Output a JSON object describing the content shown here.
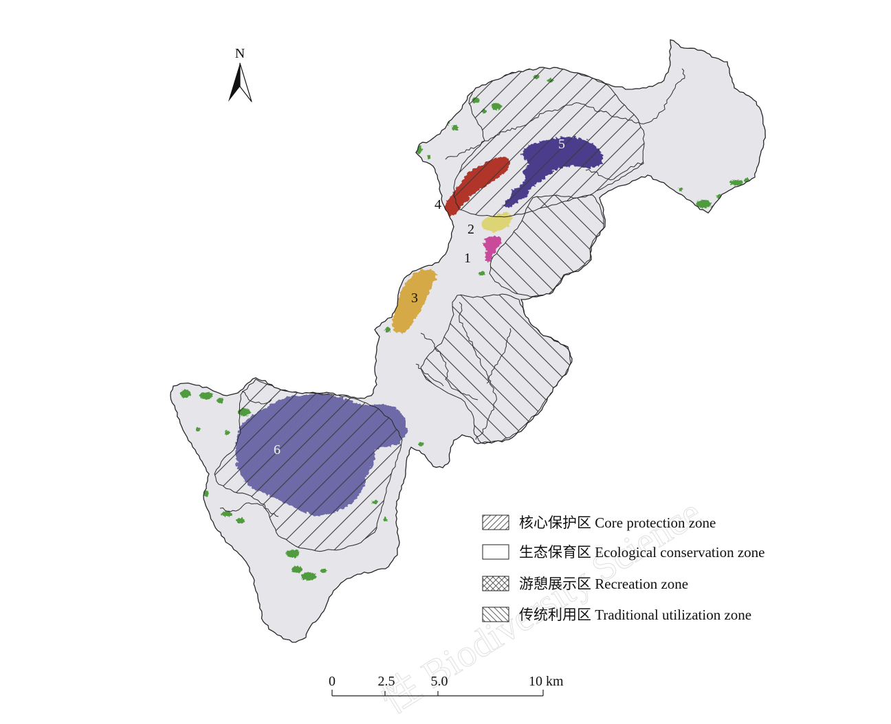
{
  "figure": {
    "north_label": "N"
  },
  "patches": [
    {
      "label": "1",
      "color": "#c94a9b"
    },
    {
      "label": "2",
      "color": "#ddd574"
    },
    {
      "label": "3",
      "color": "#d5a944"
    },
    {
      "label": "4",
      "color": "#b2342a"
    },
    {
      "label": "5",
      "color": "#4b3c8c"
    },
    {
      "label": "6",
      "color": "#6e69a7"
    }
  ],
  "legend": {
    "items": [
      {
        "label": "核心保护区 Core protection zone"
      },
      {
        "label": "生态保育区 Ecological conservation zone"
      },
      {
        "label": "游憩展示区 Recreation zone"
      },
      {
        "label": "传统利用区 Traditional utilization zone"
      }
    ]
  },
  "scale_bar": {
    "labels": [
      "0",
      "2.5",
      "5.0",
      "10 km"
    ]
  },
  "colors": {
    "map_fill": "#e5e5ea",
    "boundary": "#262626",
    "hatch": "#3a3a3a",
    "green_patch": "#4f9b3c"
  },
  "watermark": "性 Biodiversity Science"
}
